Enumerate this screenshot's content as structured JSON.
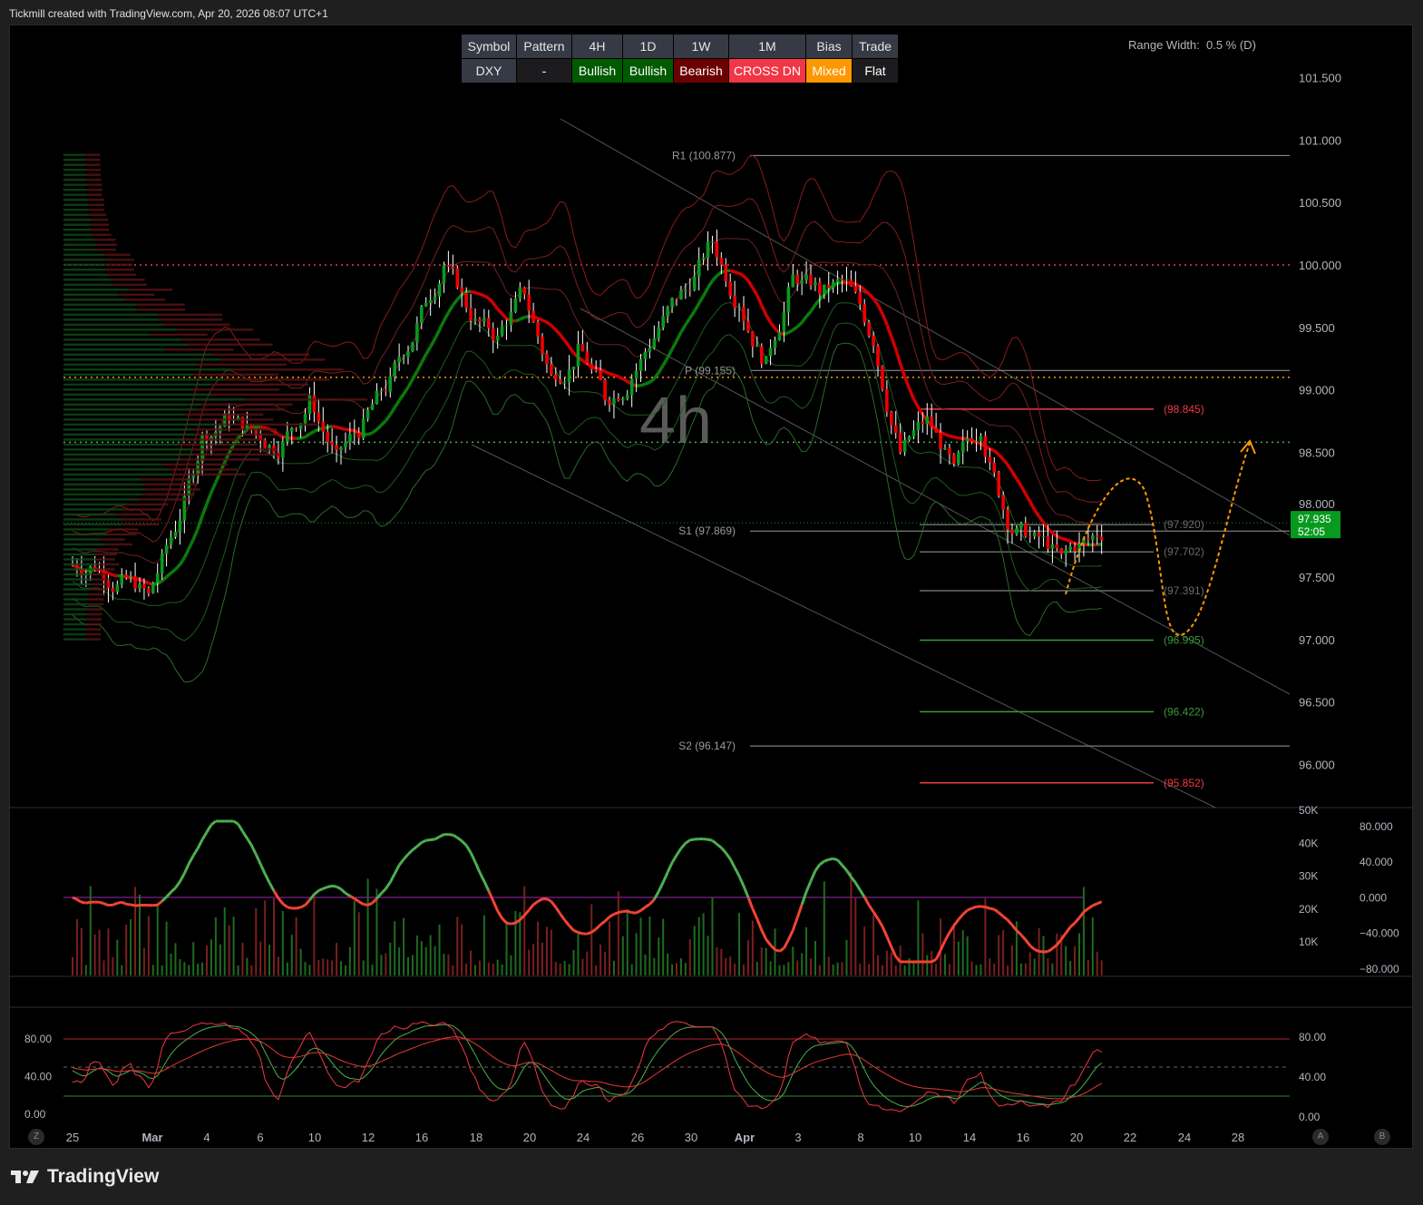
{
  "header": {
    "text": "Tickmill created with TradingView.com, Apr 20, 2026 08:07 UTC+1"
  },
  "table": {
    "headers": [
      "Symbol",
      "Pattern",
      "4H",
      "1D",
      "1W",
      "1M",
      "Bias",
      "Trade"
    ],
    "values": [
      "DXY",
      "-",
      "Bullish",
      "Bullish",
      "Bearish",
      "CROSS DN",
      "Mixed",
      "Flat"
    ],
    "colors": [
      "#363a45",
      "#1c1c1f",
      "#005a00",
      "#005a00",
      "#6b0000",
      "#f23645",
      "#ff9800",
      "#1c1c1f"
    ],
    "widths": [
      60,
      60,
      55,
      55,
      60,
      84,
      50,
      50
    ]
  },
  "range_width": {
    "label": "Range Width:",
    "value": "0.5 % (D)"
  },
  "watermark": "4h",
  "footer": {
    "brand": "TradingView"
  },
  "corner_buttons": {
    "left": "Z",
    "a": "A",
    "b": "B"
  },
  "chart_data": {
    "type": "candlestick",
    "symbol": "DXY",
    "interval": "4h",
    "price_axis": {
      "ticks": [
        "101.500",
        "101.000",
        "100.500",
        "100.000",
        "99.500",
        "99.000",
        "98.500",
        "98.000",
        "97.500",
        "97.000",
        "96.500",
        "96.000"
      ],
      "range": [
        95.7,
        101.9
      ]
    },
    "time_axis": {
      "ticks": [
        "25",
        "Mar",
        "4",
        "6",
        "10",
        "12",
        "16",
        "18",
        "20",
        "24",
        "26",
        "30",
        "Apr",
        "3",
        "8",
        "10",
        "14",
        "16",
        "20",
        "22",
        "24",
        "28"
      ]
    },
    "daily_closes": [
      97.6,
      97.45,
      97.35,
      97.9,
      98.6,
      98.8,
      98.65,
      98.55,
      98.9,
      98.45,
      98.7,
      99.05,
      99.5,
      100.0,
      99.6,
      99.4,
      99.8,
      99.1,
      99.3,
      98.95,
      99.1,
      99.5,
      99.8,
      100.2,
      99.7,
      99.2,
      99.9,
      99.8,
      99.85,
      99.4,
      98.5,
      98.75,
      98.35,
      98.7,
      97.95,
      97.8,
      97.65,
      97.8,
      97.935
    ],
    "last_price": {
      "value": "97.935",
      "countdown": "52:05",
      "color": "#089a1e"
    },
    "pivots": [
      {
        "label": "R1 (100.877)",
        "value": 100.877
      },
      {
        "label": "P (99.155)",
        "value": 99.155
      },
      {
        "label": "S1 (97.869)",
        "value": 97.869
      },
      {
        "label": "S2 (96.147)",
        "value": 96.147
      }
    ],
    "levels": [
      {
        "label": "(98.845)",
        "value": 98.845,
        "color": "#f23645"
      },
      {
        "label": "(97.920)",
        "value": 97.92,
        "color": "#6a6a6a"
      },
      {
        "label": "(97.702)",
        "value": 97.702,
        "color": "#6a6a6a"
      },
      {
        "label": "(97.391)",
        "value": 97.391,
        "color": "#6a6a6a"
      },
      {
        "label": "(96.995)",
        "value": 96.995,
        "color": "#3a9a3a"
      },
      {
        "label": "(96.422)",
        "value": 96.422,
        "color": "#3a9a3a"
      },
      {
        "label": "(95.852)",
        "value": 95.852,
        "color": "#f23645"
      }
    ],
    "dotted_lines": [
      {
        "value": 100.0,
        "color": "#f23645"
      },
      {
        "value": 99.1,
        "color": "#ff9800"
      },
      {
        "value": 98.58,
        "color": "#4caf50"
      }
    ],
    "volume_axis": {
      "ticks": [
        "50K",
        "40K",
        "30K",
        "20K",
        "10K"
      ]
    },
    "oscillator_axis": {
      "ticks": [
        "80.000",
        "40.000",
        "0.000",
        "−40.000",
        "−80.000"
      ]
    },
    "stoch_axis": {
      "left_ticks": [
        "80.00",
        "40.00",
        "0.00"
      ],
      "right_ticks": [
        "80.00",
        "40.00",
        "0.00"
      ]
    },
    "colors": {
      "up": "#089a1e",
      "down": "#f20000",
      "projection": "#ff9800"
    }
  }
}
